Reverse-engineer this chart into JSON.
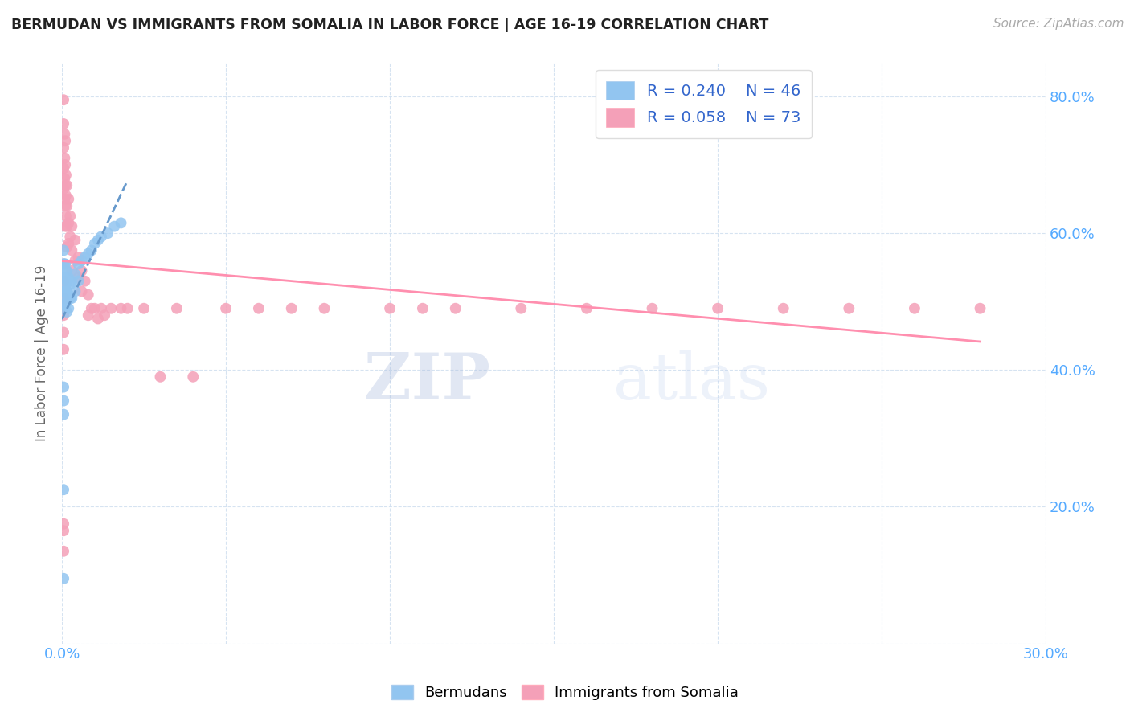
{
  "title": "BERMUDAN VS IMMIGRANTS FROM SOMALIA IN LABOR FORCE | AGE 16-19 CORRELATION CHART",
  "source": "Source: ZipAtlas.com",
  "ylabel": "In Labor Force | Age 16-19",
  "xlim": [
    0.0,
    0.3
  ],
  "ylim": [
    0.0,
    0.85
  ],
  "x_ticks": [
    0.0,
    0.05,
    0.1,
    0.15,
    0.2,
    0.25,
    0.3
  ],
  "y_ticks": [
    0.0,
    0.2,
    0.4,
    0.6,
    0.8
  ],
  "bermudan_color": "#92C5F0",
  "somalia_color": "#F4A0B8",
  "trendline_bermudan_color": "#6699CC",
  "trendline_somalia_color": "#FF8FAF",
  "bermudan_R": 0.24,
  "bermudan_N": 46,
  "somalia_R": 0.058,
  "somalia_N": 73,
  "legend_label_bermudan": "Bermudans",
  "legend_label_somalia": "Immigrants from Somalia",
  "watermark_zip": "ZIP",
  "watermark_atlas": "atlas",
  "bermudan_x": [
    0.0005,
    0.0005,
    0.0005,
    0.0005,
    0.0005,
    0.0008,
    0.0008,
    0.0008,
    0.001,
    0.001,
    0.001,
    0.001,
    0.0012,
    0.0012,
    0.0012,
    0.0015,
    0.0015,
    0.0015,
    0.0015,
    0.0015,
    0.002,
    0.002,
    0.002,
    0.0025,
    0.0025,
    0.003,
    0.003,
    0.004,
    0.004,
    0.005,
    0.005,
    0.006,
    0.007,
    0.008,
    0.009,
    0.01,
    0.011,
    0.012,
    0.014,
    0.016,
    0.018,
    0.0005,
    0.0005,
    0.0005,
    0.0005,
    0.0005
  ],
  "bermudan_y": [
    0.575,
    0.555,
    0.535,
    0.515,
    0.495,
    0.555,
    0.535,
    0.515,
    0.555,
    0.535,
    0.515,
    0.495,
    0.545,
    0.525,
    0.505,
    0.545,
    0.53,
    0.515,
    0.5,
    0.485,
    0.535,
    0.51,
    0.49,
    0.525,
    0.505,
    0.53,
    0.505,
    0.54,
    0.515,
    0.555,
    0.53,
    0.56,
    0.565,
    0.57,
    0.575,
    0.585,
    0.59,
    0.595,
    0.6,
    0.61,
    0.615,
    0.375,
    0.355,
    0.335,
    0.225,
    0.095
  ],
  "somalia_x": [
    0.0005,
    0.0005,
    0.0005,
    0.0005,
    0.0005,
    0.0008,
    0.0008,
    0.0008,
    0.0008,
    0.001,
    0.001,
    0.001,
    0.001,
    0.001,
    0.0012,
    0.0012,
    0.0012,
    0.0015,
    0.0015,
    0.0015,
    0.0015,
    0.002,
    0.002,
    0.002,
    0.0025,
    0.0025,
    0.003,
    0.003,
    0.003,
    0.004,
    0.004,
    0.005,
    0.005,
    0.006,
    0.006,
    0.007,
    0.008,
    0.008,
    0.009,
    0.01,
    0.011,
    0.012,
    0.013,
    0.015,
    0.018,
    0.02,
    0.025,
    0.03,
    0.035,
    0.04,
    0.05,
    0.06,
    0.07,
    0.08,
    0.1,
    0.11,
    0.12,
    0.14,
    0.16,
    0.18,
    0.2,
    0.22,
    0.24,
    0.26,
    0.28,
    0.0005,
    0.0005,
    0.0005,
    0.0005,
    0.0005,
    0.0005,
    0.0005,
    0.0005,
    0.0005
  ],
  "somalia_y": [
    0.795,
    0.76,
    0.725,
    0.695,
    0.665,
    0.745,
    0.71,
    0.68,
    0.65,
    0.735,
    0.7,
    0.67,
    0.64,
    0.61,
    0.685,
    0.655,
    0.625,
    0.67,
    0.64,
    0.61,
    0.58,
    0.65,
    0.615,
    0.585,
    0.625,
    0.595,
    0.61,
    0.575,
    0.545,
    0.59,
    0.56,
    0.565,
    0.535,
    0.545,
    0.515,
    0.53,
    0.51,
    0.48,
    0.49,
    0.49,
    0.475,
    0.49,
    0.48,
    0.49,
    0.49,
    0.49,
    0.49,
    0.39,
    0.49,
    0.39,
    0.49,
    0.49,
    0.49,
    0.49,
    0.49,
    0.49,
    0.49,
    0.49,
    0.49,
    0.49,
    0.49,
    0.49,
    0.49,
    0.49,
    0.49,
    0.555,
    0.53,
    0.505,
    0.48,
    0.455,
    0.43,
    0.175,
    0.135,
    0.165
  ]
}
